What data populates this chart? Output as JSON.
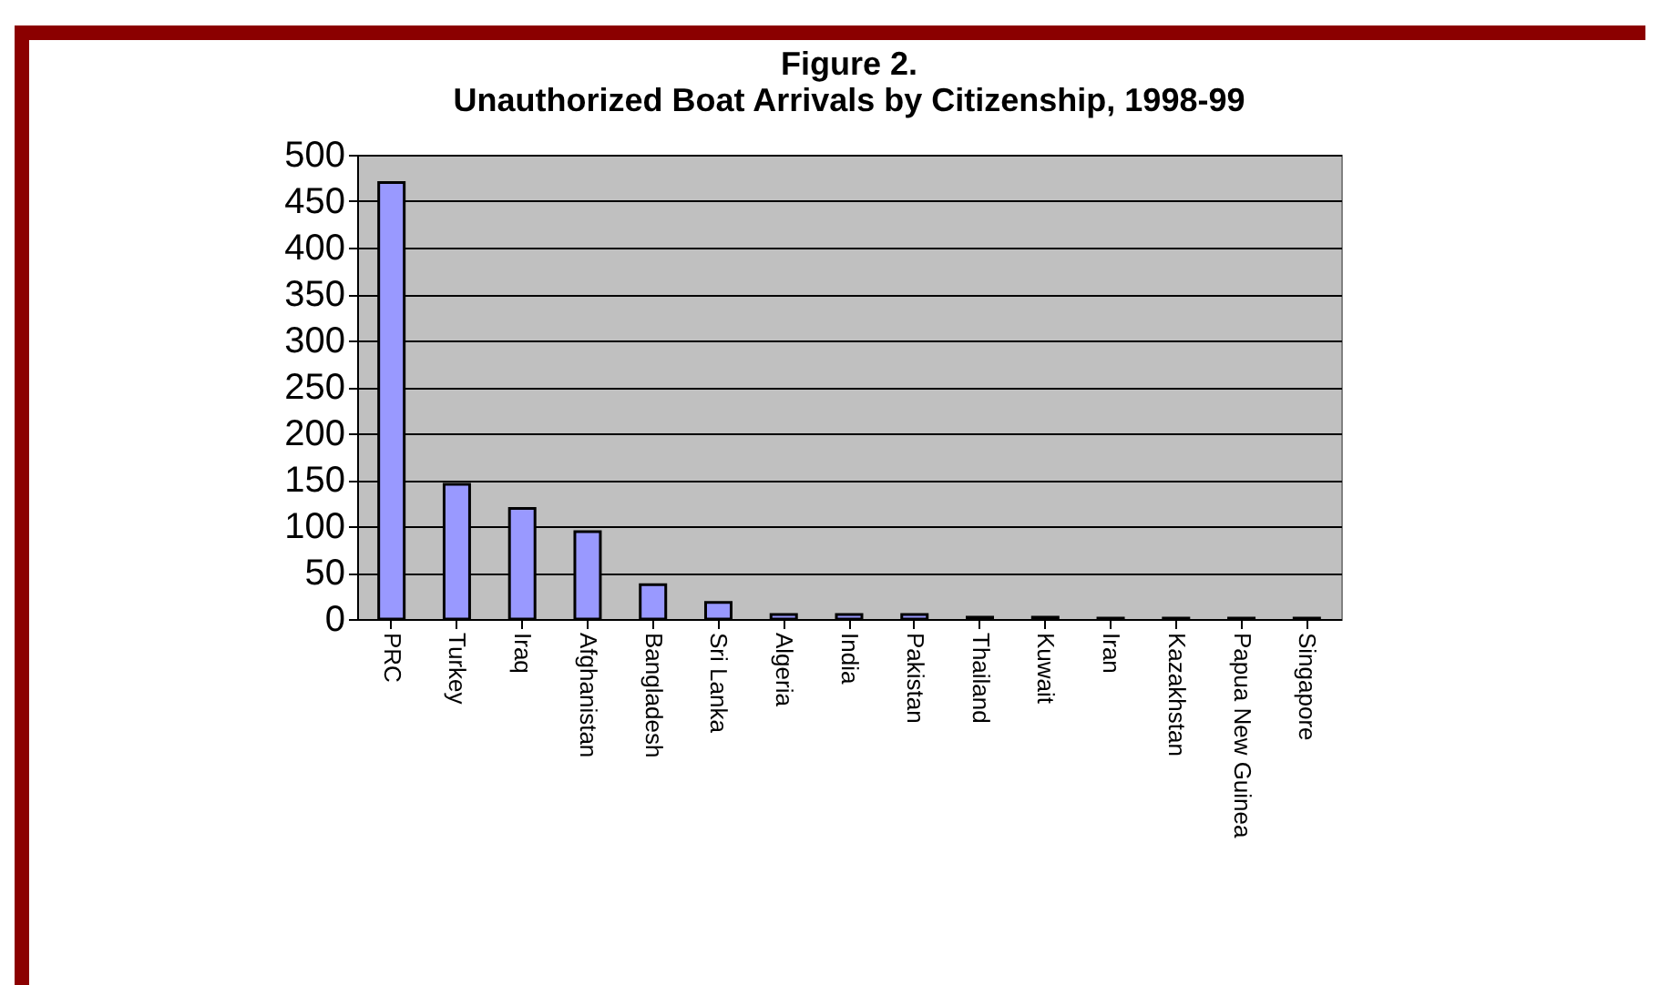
{
  "chart_data": {
    "type": "bar",
    "title": [
      "Figure 2.",
      "Unauthorized Boat Arrivals by Citizenship, 1998-99"
    ],
    "categories": [
      "PRC",
      "Turkey",
      "Iraq",
      "Afghanistan",
      "Bangladesh",
      "Sri Lanka",
      "Algeria",
      "India",
      "Pakistan",
      "Thailand",
      "Kuwait",
      "Iran",
      "Kazakhstan",
      "Papua New Guinea",
      "Singapore"
    ],
    "values": [
      470,
      145,
      119,
      94,
      37,
      18,
      5,
      5,
      5,
      2,
      2,
      1,
      1,
      1,
      1
    ],
    "color": "#9999ff",
    "ylim": [
      0,
      500
    ],
    "yticks": [
      0,
      50,
      100,
      150,
      200,
      250,
      300,
      350,
      400,
      450,
      500
    ],
    "grid": true
  }
}
